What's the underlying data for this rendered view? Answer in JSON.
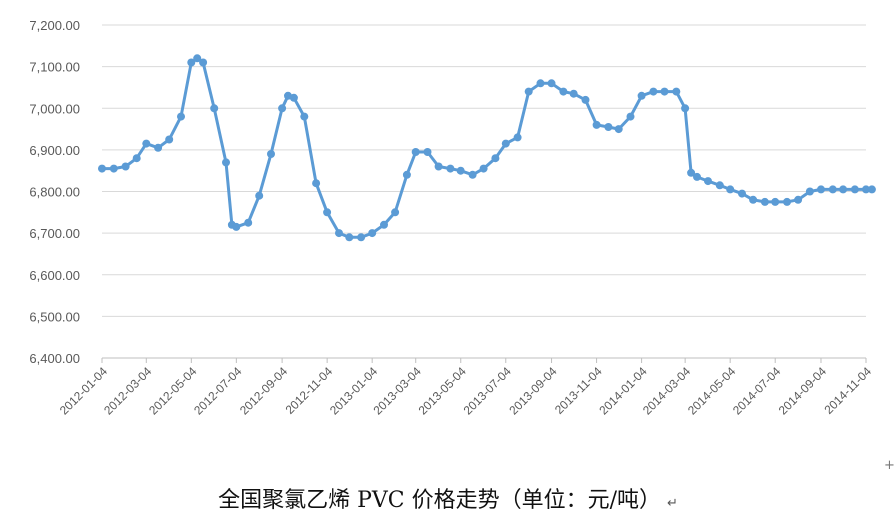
{
  "chart_data": {
    "type": "line",
    "title": "全国聚氯乙烯 PVC 价格走势（单位：元/吨）",
    "xlabel": "",
    "ylabel": "",
    "ylim": [
      6400,
      7200
    ],
    "y_ticks": [
      "6,400.00",
      "6,500.00",
      "6,600.00",
      "6,700.00",
      "6,800.00",
      "6,900.00",
      "7,000.00",
      "7,100.00",
      "7,200.00"
    ],
    "x_ticks": [
      "2012-01-04",
      "2012-03-04",
      "2012-05-04",
      "2012-07-04",
      "2012-09-04",
      "2012-11-04",
      "2013-01-04",
      "2013-03-04",
      "2013-05-04",
      "2013-07-04",
      "2013-09-04",
      "2013-11-04",
      "2014-01-04",
      "2014-03-04",
      "2014-05-04",
      "2014-07-04",
      "2014-09-04",
      "2014-11-04"
    ],
    "grid": "horizontal",
    "marker": "circle",
    "color": "#5B9BD5",
    "series": [
      {
        "points": [
          [
            "2012-01-04",
            6855
          ],
          [
            "2012-01-20",
            6855
          ],
          [
            "2012-02-05",
            6860
          ],
          [
            "2012-02-20",
            6880
          ],
          [
            "2012-03-04",
            6915
          ],
          [
            "2012-03-20",
            6905
          ],
          [
            "2012-04-04",
            6925
          ],
          [
            "2012-04-20",
            6980
          ],
          [
            "2012-05-04",
            7110
          ],
          [
            "2012-05-12",
            7120
          ],
          [
            "2012-05-20",
            7110
          ],
          [
            "2012-06-04",
            7000
          ],
          [
            "2012-06-20",
            6870
          ],
          [
            "2012-06-28",
            6720
          ],
          [
            "2012-07-04",
            6715
          ],
          [
            "2012-07-20",
            6725
          ],
          [
            "2012-08-04",
            6790
          ],
          [
            "2012-08-20",
            6890
          ],
          [
            "2012-09-04",
            7000
          ],
          [
            "2012-09-12",
            7030
          ],
          [
            "2012-09-20",
            7025
          ],
          [
            "2012-10-04",
            6980
          ],
          [
            "2012-10-20",
            6820
          ],
          [
            "2012-11-04",
            6750
          ],
          [
            "2012-11-20",
            6700
          ],
          [
            "2012-12-04",
            6690
          ],
          [
            "2012-12-20",
            6690
          ],
          [
            "2013-01-04",
            6700
          ],
          [
            "2013-01-20",
            6720
          ],
          [
            "2013-02-04",
            6750
          ],
          [
            "2013-02-20",
            6840
          ],
          [
            "2013-03-04",
            6895
          ],
          [
            "2013-03-20",
            6895
          ],
          [
            "2013-04-04",
            6860
          ],
          [
            "2013-04-20",
            6855
          ],
          [
            "2013-05-04",
            6850
          ],
          [
            "2013-05-20",
            6840
          ],
          [
            "2013-06-04",
            6855
          ],
          [
            "2013-06-20",
            6880
          ],
          [
            "2013-07-04",
            6915
          ],
          [
            "2013-07-20",
            6930
          ],
          [
            "2013-08-04",
            7040
          ],
          [
            "2013-08-20",
            7060
          ],
          [
            "2013-09-04",
            7060
          ],
          [
            "2013-09-20",
            7040
          ],
          [
            "2013-10-04",
            7035
          ],
          [
            "2013-10-20",
            7020
          ],
          [
            "2013-11-04",
            6960
          ],
          [
            "2013-11-20",
            6955
          ],
          [
            "2013-12-04",
            6950
          ],
          [
            "2013-12-20",
            6980
          ],
          [
            "2014-01-04",
            7030
          ],
          [
            "2014-01-20",
            7040
          ],
          [
            "2014-02-04",
            7040
          ],
          [
            "2014-02-20",
            7040
          ],
          [
            "2014-03-04",
            7000
          ],
          [
            "2014-03-12",
            6845
          ],
          [
            "2014-03-20",
            6835
          ],
          [
            "2014-04-04",
            6825
          ],
          [
            "2014-04-20",
            6815
          ],
          [
            "2014-05-04",
            6805
          ],
          [
            "2014-05-20",
            6795
          ],
          [
            "2014-06-04",
            6780
          ],
          [
            "2014-06-20",
            6775
          ],
          [
            "2014-07-04",
            6775
          ],
          [
            "2014-07-20",
            6775
          ],
          [
            "2014-08-04",
            6780
          ],
          [
            "2014-08-20",
            6800
          ],
          [
            "2014-09-04",
            6805
          ],
          [
            "2014-09-20",
            6805
          ],
          [
            "2014-10-04",
            6805
          ],
          [
            "2014-10-20",
            6805
          ],
          [
            "2014-11-04",
            6805
          ],
          [
            "2014-11-12",
            6805
          ]
        ]
      }
    ]
  },
  "caption": {
    "text": "全国聚氯乙烯 PVC 价格走势（单位：元/吨）",
    "return_mark": "↵"
  },
  "corner_mark": "+"
}
